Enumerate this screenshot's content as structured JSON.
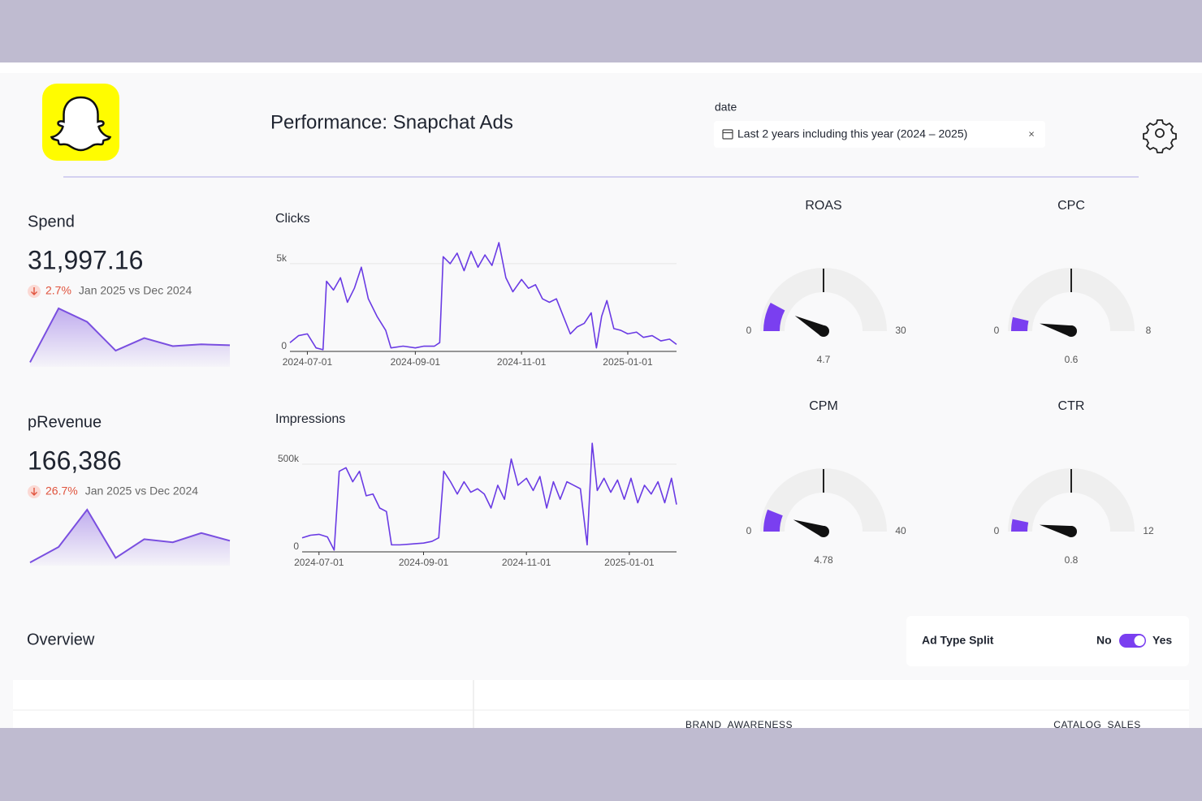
{
  "header": {
    "title": "Performance: Snapchat Ads",
    "date_filter": {
      "label": "date",
      "value": "Last 2 years including this year (2024 – 2025)",
      "clear": "×"
    }
  },
  "kpis": [
    {
      "title": "Spend",
      "value": "31,997.16",
      "change": "2.7%",
      "comparison": "Jan 2025 vs Dec 2024",
      "color": "#7a4fe0",
      "trend": [
        500,
        6500,
        5000,
        1800,
        3200,
        2300,
        2500,
        2400
      ]
    },
    {
      "title": "pRevenue",
      "value": "166,386",
      "change": "26.7%",
      "comparison": "Jan 2025 vs Dec 2024",
      "color": "#7a4fe0",
      "trend": [
        2000,
        12000,
        36000,
        5000,
        17000,
        15000,
        21000,
        16000
      ]
    }
  ],
  "charts": [
    {
      "type": "line",
      "title": "Clicks",
      "color": "#6a3be4",
      "xlim": [
        "2024-06-21",
        "2025-01-29"
      ],
      "ylim": [
        0,
        6200
      ],
      "yticks": [
        0,
        {
          "value": 5000,
          "label": "5k"
        }
      ],
      "xticks": [
        "2024-07-01",
        "2024-09-01",
        "2024-11-01",
        "2025-01-01"
      ],
      "grid": true,
      "x": [
        "2024-06-21",
        "2024-06-26",
        "2024-07-01",
        "2024-07-06",
        "2024-07-10",
        "2024-07-12",
        "2024-07-16",
        "2024-07-20",
        "2024-07-24",
        "2024-07-28",
        "2024-08-01",
        "2024-08-05",
        "2024-08-10",
        "2024-08-15",
        "2024-08-18",
        "2024-08-25",
        "2024-09-01",
        "2024-09-06",
        "2024-09-12",
        "2024-09-15",
        "2024-09-17",
        "2024-09-21",
        "2024-09-25",
        "2024-09-29",
        "2024-10-03",
        "2024-10-07",
        "2024-10-11",
        "2024-10-15",
        "2024-10-19",
        "2024-10-23",
        "2024-10-27",
        "2024-11-01",
        "2024-11-05",
        "2024-11-09",
        "2024-11-13",
        "2024-11-17",
        "2024-11-21",
        "2024-11-25",
        "2024-11-29",
        "2024-12-03",
        "2024-12-07",
        "2024-12-11",
        "2024-12-14",
        "2024-12-17",
        "2024-12-20",
        "2024-12-24",
        "2024-12-28",
        "2025-01-01",
        "2025-01-06",
        "2025-01-10",
        "2025-01-15",
        "2025-01-20",
        "2025-01-25",
        "2025-01-29"
      ],
      "values": [
        500,
        900,
        1000,
        200,
        100,
        4000,
        3500,
        4200,
        2800,
        3600,
        4800,
        3000,
        2000,
        1200,
        200,
        300,
        200,
        300,
        300,
        500,
        5400,
        5000,
        5600,
        4600,
        5700,
        4800,
        5500,
        4900,
        6200,
        4200,
        3400,
        4100,
        3600,
        3800,
        3000,
        2800,
        3000,
        2000,
        1000,
        1400,
        1600,
        2200,
        200,
        2000,
        2900,
        1300,
        1200,
        1000,
        1100,
        800,
        900,
        600,
        700,
        400
      ]
    },
    {
      "type": "line",
      "title": "Impressions",
      "color": "#6a3be4",
      "xlim": [
        "2024-06-21",
        "2025-01-29"
      ],
      "ylim": [
        0,
        640000
      ],
      "yticks": [
        0,
        {
          "value": 500000,
          "label": "500k"
        }
      ],
      "xticks": [
        "2024-07-01",
        "2024-09-01",
        "2024-11-01",
        "2025-01-01"
      ],
      "grid": true,
      "x": [
        "2024-06-21",
        "2024-06-26",
        "2024-07-01",
        "2024-07-06",
        "2024-07-10",
        "2024-07-13",
        "2024-07-17",
        "2024-07-21",
        "2024-07-25",
        "2024-07-29",
        "2024-08-02",
        "2024-08-06",
        "2024-08-10",
        "2024-08-13",
        "2024-08-18",
        "2024-08-25",
        "2024-09-01",
        "2024-09-06",
        "2024-09-10",
        "2024-09-13",
        "2024-09-17",
        "2024-09-21",
        "2024-09-25",
        "2024-09-29",
        "2024-10-03",
        "2024-10-07",
        "2024-10-11",
        "2024-10-15",
        "2024-10-19",
        "2024-10-23",
        "2024-10-27",
        "2024-11-01",
        "2024-11-05",
        "2024-11-09",
        "2024-11-13",
        "2024-11-17",
        "2024-11-21",
        "2024-11-25",
        "2024-11-29",
        "2024-12-03",
        "2024-12-07",
        "2024-12-10",
        "2024-12-13",
        "2024-12-17",
        "2024-12-21",
        "2024-12-25",
        "2024-12-29",
        "2025-01-02",
        "2025-01-06",
        "2025-01-10",
        "2025-01-14",
        "2025-01-18",
        "2025-01-22",
        "2025-01-26",
        "2025-01-29"
      ],
      "values": [
        80000,
        95000,
        100000,
        85000,
        10000,
        460000,
        480000,
        400000,
        460000,
        320000,
        330000,
        250000,
        230000,
        40000,
        40000,
        45000,
        50000,
        60000,
        80000,
        460000,
        400000,
        330000,
        400000,
        340000,
        360000,
        330000,
        250000,
        380000,
        300000,
        530000,
        380000,
        420000,
        350000,
        430000,
        250000,
        400000,
        300000,
        400000,
        380000,
        360000,
        40000,
        620000,
        350000,
        420000,
        340000,
        410000,
        300000,
        420000,
        280000,
        380000,
        330000,
        400000,
        280000,
        420000,
        270000
      ]
    }
  ],
  "gauges": [
    {
      "title": "ROAS",
      "min": 0,
      "max": 30,
      "value": 4.7,
      "color": "#7a3ff0"
    },
    {
      "title": "CPC",
      "min": 0,
      "max": 8,
      "value": 0.6,
      "color": "#7a3ff0"
    },
    {
      "title": "CPM",
      "min": 0,
      "max": 40,
      "value": 4.78,
      "color": "#7a3ff0"
    },
    {
      "title": "CTR",
      "min": 0,
      "max": 12,
      "value": 0.8,
      "color": "#7a3ff0"
    }
  ],
  "overview": {
    "title": "Overview",
    "toggle": {
      "label": "Ad Type Split",
      "off": "No",
      "on": "Yes",
      "checked": true
    },
    "columns": [
      "BRAND_AWARENESS",
      "CATALOG_SALES"
    ]
  }
}
